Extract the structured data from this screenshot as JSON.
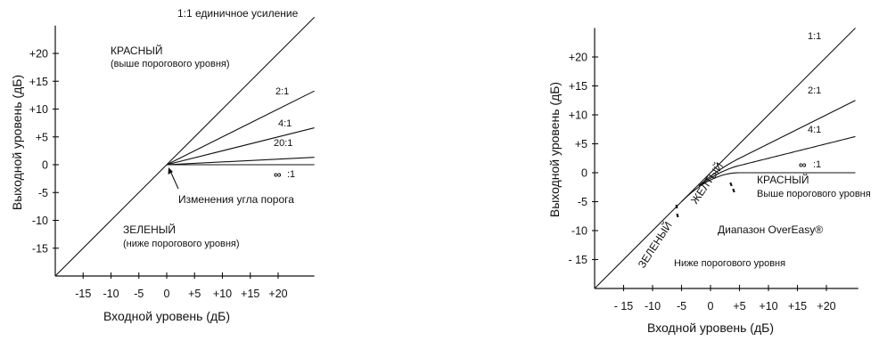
{
  "chart_data": [
    {
      "type": "line",
      "xlabel": "Входной уровень (дБ)",
      "ylabel": "Выходной уровень (дБ)",
      "x_ticks": [
        "-15",
        "-10",
        "-5",
        "0",
        "+5",
        "+10",
        "+15",
        "+20"
      ],
      "y_ticks": [
        "+20",
        "+15",
        "+10",
        "+5",
        "0",
        "-5",
        "-10",
        "-15"
      ],
      "xlim": [
        -20,
        25
      ],
      "ylim": [
        -20,
        25
      ],
      "threshold_db": 0,
      "series": [
        {
          "name": "1:1 единичное усиление",
          "ratio": 1
        },
        {
          "name": "2:1",
          "ratio": 2
        },
        {
          "name": "4:1",
          "ratio": 4
        },
        {
          "name": "20:1",
          "ratio": 20
        },
        {
          "name": ":1",
          "ratio": "inf"
        }
      ],
      "annotations": {
        "above": "КРАСНЫЙ",
        "above_sub": "(выше порогового уровня)",
        "below": "ЗЕЛЕНЫЙ",
        "below_sub": "(ниже порогового уровня)",
        "knee": "Изменения угла порога"
      }
    },
    {
      "type": "line",
      "xlabel": "Входной уровень (дБ)",
      "ylabel": "Выходной уровень (дБ)",
      "x_ticks": [
        "- 15",
        "-10",
        "-5",
        "0",
        "+5",
        "+10",
        "+15",
        "+20"
      ],
      "y_ticks": [
        "+20",
        "+15",
        "+10",
        "+5",
        "0",
        "-5",
        "-10",
        "- 15"
      ],
      "xlim": [
        -20,
        25
      ],
      "ylim": [
        -20,
        25
      ],
      "threshold_db": 0,
      "knee_range_db": [
        -5,
        5
      ],
      "series": [
        {
          "name": "1:1",
          "ratio": 1
        },
        {
          "name": "2:1",
          "ratio": 2
        },
        {
          "name": "4:1",
          "ratio": 4
        },
        {
          "name": ":1",
          "ratio": "inf"
        }
      ],
      "annotations": {
        "red": "КРАСНЫЙ",
        "red_sub": "Выше порогового уровня",
        "yellow": "ЖЕЛТЫЙ",
        "green": "ЗЕЛЕНЫЙ",
        "range": "Диапазон OverEasy®",
        "below": "Ниже порогового уровня"
      }
    }
  ]
}
